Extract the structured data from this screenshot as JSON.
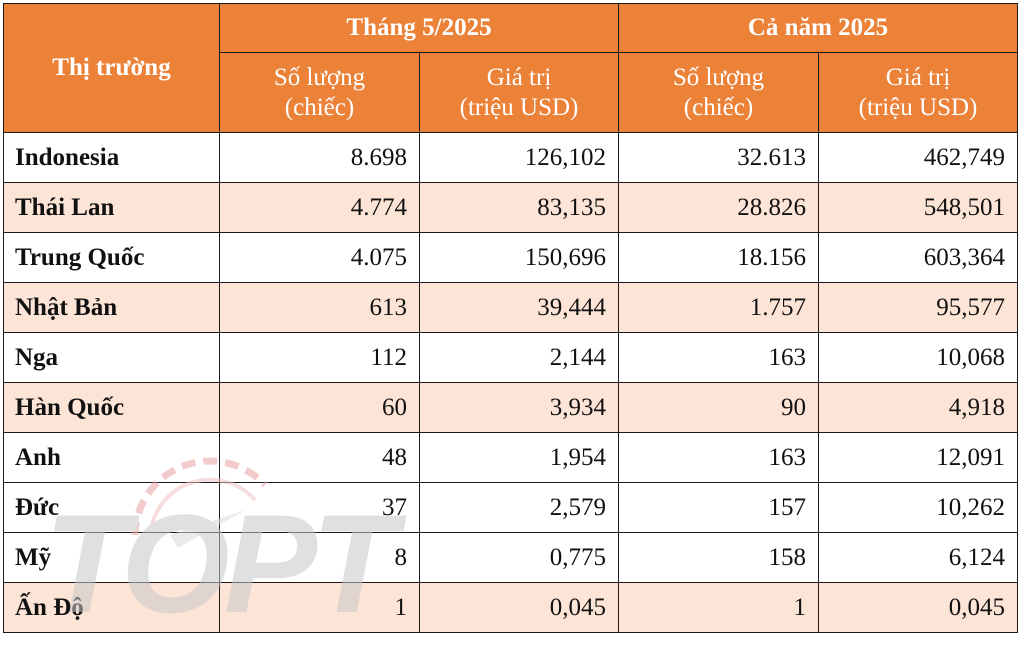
{
  "table": {
    "header": {
      "market_label": "Thị trường",
      "group_month": "Tháng 5/2025",
      "group_year": "Cả năm 2025",
      "qty_line1": "Số lượng",
      "qty_line2": "(chiếc)",
      "val_line1": "Giá trị",
      "val_line2": "(triệu USD)"
    },
    "rows": [
      {
        "market": "Indonesia",
        "month_qty": "8.698",
        "month_val": "126,102",
        "year_qty": "32.613",
        "year_val": "462,749"
      },
      {
        "market": "Thái Lan",
        "month_qty": "4.774",
        "month_val": "83,135",
        "year_qty": "28.826",
        "year_val": "548,501"
      },
      {
        "market": "Trung Quốc",
        "month_qty": "4.075",
        "month_val": "150,696",
        "year_qty": "18.156",
        "year_val": "603,364"
      },
      {
        "market": "Nhật Bản",
        "month_qty": "613",
        "month_val": "39,444",
        "year_qty": "1.757",
        "year_val": "95,577"
      },
      {
        "market": "Nga",
        "month_qty": "112",
        "month_val": "2,144",
        "year_qty": "163",
        "year_val": "10,068"
      },
      {
        "market": "Hàn Quốc",
        "month_qty": "60",
        "month_val": "3,934",
        "year_qty": "90",
        "year_val": "4,918"
      },
      {
        "market": "Anh",
        "month_qty": "48",
        "month_val": "1,954",
        "year_qty": "163",
        "year_val": "12,091"
      },
      {
        "market": "Đức",
        "month_qty": "37",
        "month_val": "2,579",
        "year_qty": "157",
        "year_val": "10,262"
      },
      {
        "market": "Mỹ",
        "month_qty": "8",
        "month_val": "0,775",
        "year_qty": "158",
        "year_val": "6,124"
      },
      {
        "market": "Ấn Độ",
        "month_qty": "1",
        "month_val": "0,045",
        "year_qty": "1",
        "year_val": "0,045"
      }
    ]
  },
  "watermark": {
    "text": "TOPT",
    "icon": "speedometer-logo-icon"
  },
  "colors": {
    "header_bg": "#ec8138",
    "header_text": "#ffffff",
    "alt_row_bg": "#fce4d6",
    "border": "#1a1a1a"
  }
}
